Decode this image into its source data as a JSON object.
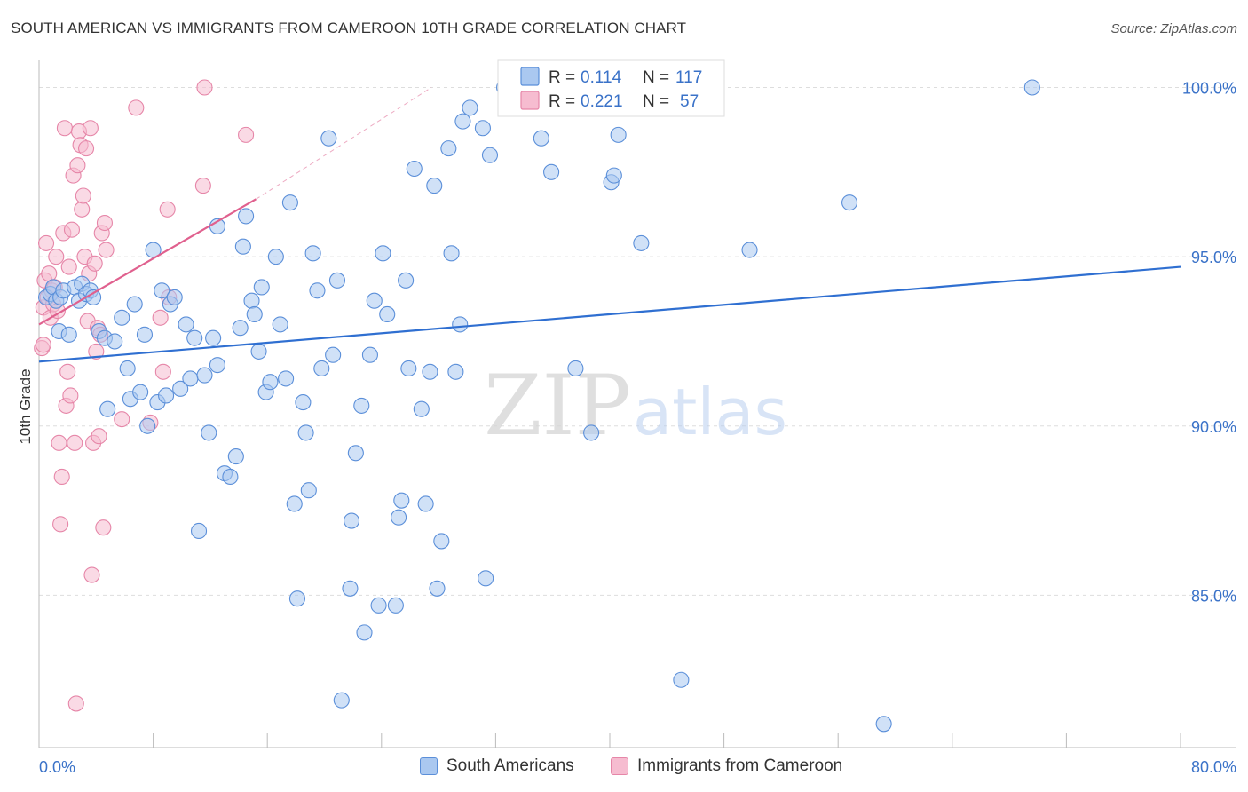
{
  "title": "SOUTH AMERICAN VS IMMIGRANTS FROM CAMEROON 10TH GRADE CORRELATION CHART",
  "source": "Source: ZipAtlas.com",
  "watermark": {
    "zip": "ZIP",
    "atlas": "atlas"
  },
  "colors": {
    "blue_fill": "#aac8f0",
    "blue_stroke": "#5b8fd9",
    "blue_line": "#2f6fd1",
    "pink_fill": "#f6bcd0",
    "pink_stroke": "#e686a8",
    "pink_line": "#e0608e",
    "tick_label": "#3a72c8",
    "grid": "#dddddd"
  },
  "legend_top": {
    "rows": [
      {
        "r_label": "R =",
        "r_value": "0.114",
        "n_label": "N =",
        "n_value": "117"
      },
      {
        "r_label": "R =",
        "r_value": "0.221",
        "n_label": "N =",
        "n_value": "57"
      }
    ]
  },
  "legend_bottom": {
    "series_1": "South Americans",
    "series_2": "Immigrants from Cameroon"
  },
  "chart_data": {
    "type": "scatter",
    "title": "SOUTH AMERICAN VS IMMIGRANTS FROM CAMEROON 10TH GRADE CORRELATION CHART",
    "ylabel": "10th Grade",
    "xlabel": "",
    "xlim": [
      0,
      80
    ],
    "ylim": [
      80.5,
      100.8
    ],
    "x_tick_labels": [
      "0.0%",
      "80.0%"
    ],
    "y_ticks": [
      85,
      90,
      95,
      100
    ],
    "y_tick_labels": [
      "85.0%",
      "90.0%",
      "95.0%",
      "100.0%"
    ],
    "grid": true,
    "series": [
      {
        "name": "South Americans",
        "R": 0.114,
        "N": 117,
        "trend": {
          "x": [
            0,
            80
          ],
          "y": [
            91.9,
            94.7
          ]
        },
        "points": [
          [
            0.5,
            93.8
          ],
          [
            0.8,
            93.9
          ],
          [
            1.0,
            94.1
          ],
          [
            1.2,
            93.7
          ],
          [
            1.5,
            93.8
          ],
          [
            1.7,
            94.0
          ],
          [
            1.4,
            92.8
          ],
          [
            2.1,
            92.7
          ],
          [
            2.5,
            94.1
          ],
          [
            2.8,
            93.7
          ],
          [
            3.0,
            94.2
          ],
          [
            3.3,
            93.9
          ],
          [
            3.6,
            94.0
          ],
          [
            3.8,
            93.8
          ],
          [
            4.2,
            92.8
          ],
          [
            4.6,
            92.6
          ],
          [
            4.8,
            90.5
          ],
          [
            5.3,
            92.5
          ],
          [
            5.8,
            93.2
          ],
          [
            6.2,
            91.7
          ],
          [
            6.4,
            90.8
          ],
          [
            6.7,
            93.6
          ],
          [
            7.1,
            91.0
          ],
          [
            7.4,
            92.7
          ],
          [
            7.6,
            90.0
          ],
          [
            8.0,
            95.2
          ],
          [
            8.3,
            90.7
          ],
          [
            8.6,
            94.0
          ],
          [
            8.9,
            90.9
          ],
          [
            9.2,
            93.6
          ],
          [
            9.5,
            93.8
          ],
          [
            9.9,
            91.1
          ],
          [
            10.3,
            93.0
          ],
          [
            10.6,
            91.4
          ],
          [
            10.9,
            92.6
          ],
          [
            11.2,
            86.9
          ],
          [
            11.6,
            91.5
          ],
          [
            11.9,
            89.8
          ],
          [
            12.2,
            92.6
          ],
          [
            12.5,
            91.8
          ],
          [
            12.5,
            95.9
          ],
          [
            13.0,
            88.6
          ],
          [
            13.4,
            88.5
          ],
          [
            13.8,
            89.1
          ],
          [
            14.1,
            92.9
          ],
          [
            14.3,
            95.3
          ],
          [
            14.5,
            96.2
          ],
          [
            14.9,
            93.7
          ],
          [
            15.1,
            93.3
          ],
          [
            15.4,
            92.2
          ],
          [
            15.6,
            94.1
          ],
          [
            15.9,
            91.0
          ],
          [
            16.2,
            91.3
          ],
          [
            16.6,
            95.0
          ],
          [
            16.9,
            93.0
          ],
          [
            17.3,
            91.4
          ],
          [
            17.6,
            96.6
          ],
          [
            17.9,
            87.7
          ],
          [
            18.1,
            84.9
          ],
          [
            18.5,
            90.7
          ],
          [
            18.7,
            89.8
          ],
          [
            18.9,
            88.1
          ],
          [
            19.2,
            95.1
          ],
          [
            19.5,
            94.0
          ],
          [
            19.8,
            91.7
          ],
          [
            20.3,
            98.5
          ],
          [
            20.6,
            92.1
          ],
          [
            20.9,
            94.3
          ],
          [
            21.2,
            81.9
          ],
          [
            21.8,
            85.2
          ],
          [
            21.9,
            87.2
          ],
          [
            22.2,
            89.2
          ],
          [
            22.6,
            90.6
          ],
          [
            22.8,
            83.9
          ],
          [
            23.2,
            92.1
          ],
          [
            23.5,
            93.7
          ],
          [
            23.8,
            84.7
          ],
          [
            24.1,
            95.1
          ],
          [
            24.4,
            93.3
          ],
          [
            25.0,
            84.7
          ],
          [
            25.2,
            87.3
          ],
          [
            25.4,
            87.8
          ],
          [
            25.7,
            94.3
          ],
          [
            25.9,
            91.7
          ],
          [
            26.3,
            97.6
          ],
          [
            26.8,
            90.5
          ],
          [
            27.1,
            87.7
          ],
          [
            27.4,
            91.6
          ],
          [
            27.7,
            97.1
          ],
          [
            27.9,
            85.2
          ],
          [
            28.2,
            86.6
          ],
          [
            28.7,
            98.2
          ],
          [
            28.9,
            95.1
          ],
          [
            29.2,
            91.6
          ],
          [
            29.5,
            93.0
          ],
          [
            29.7,
            99.0
          ],
          [
            30.2,
            99.4
          ],
          [
            31.1,
            98.8
          ],
          [
            31.3,
            85.5
          ],
          [
            31.6,
            98.0
          ],
          [
            32.6,
            100.0
          ],
          [
            33.7,
            100.0
          ],
          [
            35.2,
            98.5
          ],
          [
            35.9,
            97.5
          ],
          [
            38.0,
            100.0
          ],
          [
            38.3,
            99.5
          ],
          [
            37.6,
            91.7
          ],
          [
            38.7,
            89.8
          ],
          [
            40.1,
            97.2
          ],
          [
            40.3,
            97.4
          ],
          [
            40.6,
            98.6
          ],
          [
            42.2,
            95.4
          ],
          [
            45.0,
            82.5
          ],
          [
            49.8,
            95.2
          ],
          [
            56.8,
            96.6
          ],
          [
            59.2,
            81.2
          ],
          [
            69.6,
            100.0
          ]
        ]
      },
      {
        "name": "Immigrants from Cameroon",
        "R": 0.221,
        "N": 57,
        "trend": {
          "x": [
            0,
            15.2
          ],
          "y": [
            93.0,
            96.7
          ]
        },
        "trend_extension": {
          "x": [
            15.2,
            27.5
          ],
          "y": [
            96.7,
            100.0
          ]
        },
        "points": [
          [
            0.2,
            92.3
          ],
          [
            0.3,
            93.5
          ],
          [
            0.4,
            94.3
          ],
          [
            0.5,
            95.4
          ],
          [
            0.6,
            93.8
          ],
          [
            0.7,
            94.5
          ],
          [
            0.8,
            93.2
          ],
          [
            0.9,
            94.0
          ],
          [
            1.0,
            93.6
          ],
          [
            1.1,
            94.1
          ],
          [
            1.2,
            95.0
          ],
          [
            1.3,
            93.4
          ],
          [
            1.4,
            89.5
          ],
          [
            1.5,
            87.1
          ],
          [
            1.6,
            88.5
          ],
          [
            1.7,
            95.7
          ],
          [
            1.8,
            98.8
          ],
          [
            1.9,
            90.6
          ],
          [
            2.0,
            91.6
          ],
          [
            2.1,
            94.7
          ],
          [
            2.2,
            90.9
          ],
          [
            2.3,
            95.8
          ],
          [
            2.4,
            97.4
          ],
          [
            2.5,
            89.5
          ],
          [
            2.6,
            81.8
          ],
          [
            2.7,
            97.7
          ],
          [
            2.8,
            98.7
          ],
          [
            2.9,
            98.3
          ],
          [
            3.0,
            96.4
          ],
          [
            3.1,
            96.8
          ],
          [
            3.2,
            95.0
          ],
          [
            3.3,
            98.2
          ],
          [
            3.4,
            93.1
          ],
          [
            3.5,
            94.5
          ],
          [
            3.6,
            98.8
          ],
          [
            3.7,
            85.6
          ],
          [
            3.8,
            89.5
          ],
          [
            3.9,
            94.8
          ],
          [
            4.0,
            92.2
          ],
          [
            4.1,
            92.9
          ],
          [
            4.2,
            89.7
          ],
          [
            4.3,
            92.7
          ],
          [
            4.4,
            95.7
          ],
          [
            4.5,
            87.0
          ],
          [
            4.6,
            96.0
          ],
          [
            4.7,
            95.2
          ],
          [
            5.8,
            90.2
          ],
          [
            6.8,
            99.4
          ],
          [
            7.8,
            90.1
          ],
          [
            8.5,
            93.2
          ],
          [
            8.7,
            91.6
          ],
          [
            9.0,
            96.4
          ],
          [
            9.1,
            93.8
          ],
          [
            11.5,
            97.1
          ],
          [
            11.6,
            100.0
          ],
          [
            14.5,
            98.6
          ],
          [
            0.3,
            92.4
          ]
        ]
      }
    ]
  }
}
